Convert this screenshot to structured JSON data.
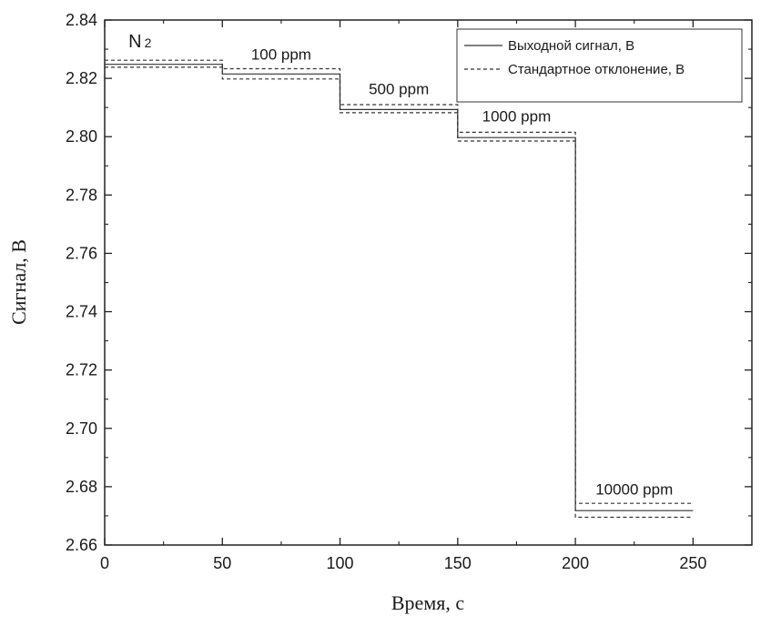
{
  "chart_data": {
    "type": "line",
    "title": "",
    "xlabel": "Время, с",
    "ylabel": "Сигнал, В",
    "xlim": [
      0,
      275
    ],
    "ylim": [
      2.66,
      2.84
    ],
    "x_ticks": [
      0,
      50,
      100,
      150,
      200,
      250
    ],
    "y_ticks": [
      2.66,
      2.68,
      2.7,
      2.72,
      2.74,
      2.76,
      2.78,
      2.8,
      2.82,
      2.84
    ],
    "grid": false,
    "legend_position": "top-right",
    "series": [
      {
        "name": "Выходной сигнал, В",
        "style": "solid",
        "color": "#333333",
        "x": [
          0,
          50,
          50,
          100,
          100,
          150,
          150,
          200,
          200,
          250
        ],
        "y": [
          2.8248,
          2.8248,
          2.8215,
          2.8215,
          2.8093,
          2.8093,
          2.7997,
          2.7997,
          2.6718,
          2.6718
        ]
      },
      {
        "name": "Стандартное отклонение, В",
        "style": "dashed",
        "color": "#333333",
        "x": [
          0,
          50,
          50,
          100,
          100,
          150,
          150,
          200,
          200,
          250
        ],
        "y": [
          2.8262,
          2.8262,
          2.8233,
          2.8233,
          2.811,
          2.811,
          2.8015,
          2.8015,
          2.6743,
          2.6743
        ]
      },
      {
        "style": "dashed",
        "color": "#333333",
        "x": [
          0,
          50,
          50,
          100,
          100,
          150,
          150,
          200,
          200,
          250
        ],
        "y": [
          2.8238,
          2.8238,
          2.8198,
          2.8198,
          2.8082,
          2.8082,
          2.7985,
          2.7985,
          2.6695,
          2.6695
        ]
      }
    ],
    "annotations": [
      {
        "text": "N",
        "sub": "2",
        "x": 15,
        "y": 2.8307,
        "kind": "n2"
      },
      {
        "text": "100 ppm",
        "x": 75,
        "y": 2.8265
      },
      {
        "text": "500 ppm",
        "x": 125,
        "y": 2.8145
      },
      {
        "text": "1000 ppm",
        "x": 175,
        "y": 2.8052
      },
      {
        "text": "10000 ppm",
        "x": 225,
        "y": 2.6773
      }
    ]
  }
}
